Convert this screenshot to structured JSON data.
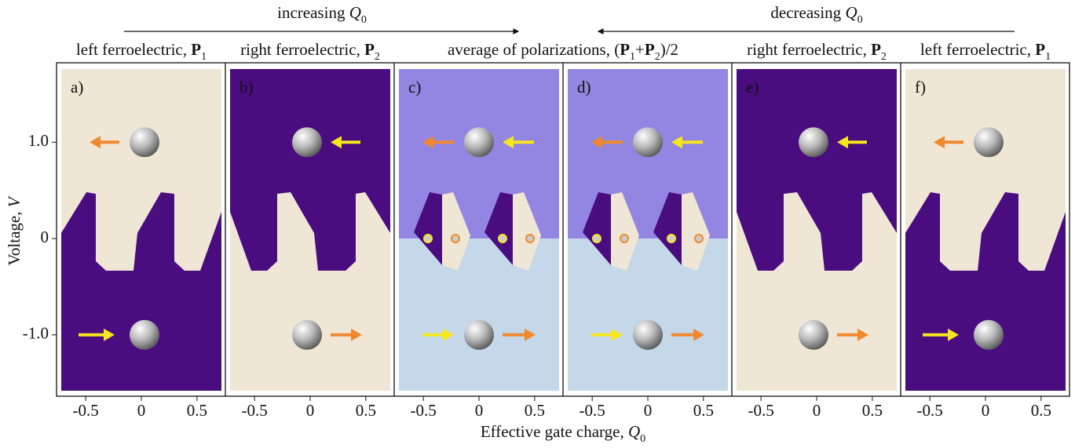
{
  "header": {
    "increasing": [
      {
        "t": "increasing  "
      },
      {
        "t": "Q",
        "i": true
      },
      {
        "t": "0",
        "sub": true
      }
    ],
    "decreasing": [
      {
        "t": "decreasing  "
      },
      {
        "t": "Q",
        "i": true
      },
      {
        "t": "0",
        "sub": true
      }
    ]
  },
  "titles": [
    [
      {
        "t": "left ferroelectric, "
      },
      {
        "t": "P",
        "b": true
      },
      {
        "t": "1",
        "sub": true
      }
    ],
    [
      {
        "t": "right ferroelectric, "
      },
      {
        "t": "P",
        "b": true
      },
      {
        "t": "2",
        "sub": true
      }
    ],
    [
      {
        "t": "average of polarizations, ("
      },
      {
        "t": "P",
        "b": true
      },
      {
        "t": "1",
        "sub": true
      },
      {
        "t": "+"
      },
      {
        "t": "P",
        "b": true
      },
      {
        "t": "2",
        "sub": true
      },
      {
        "t": ")/2"
      }
    ],
    [
      {
        "t": "right ferroelectric, "
      },
      {
        "t": "P",
        "b": true
      },
      {
        "t": "2",
        "sub": true
      }
    ],
    [
      {
        "t": "left ferroelectric, "
      },
      {
        "t": "P",
        "b": true
      },
      {
        "t": "1",
        "sub": true
      }
    ]
  ],
  "panels": [
    {
      "label": "a)",
      "kind": "left"
    },
    {
      "label": "b)",
      "kind": "right"
    },
    {
      "label": "c)",
      "kind": "average"
    },
    {
      "label": "d)",
      "kind": "average"
    },
    {
      "label": "e)",
      "kind": "right"
    },
    {
      "label": "f)",
      "kind": "left"
    }
  ],
  "y_axis": {
    "label": [
      {
        "t": "Voltage, "
      },
      {
        "t": "V",
        "i": true
      }
    ],
    "lim": [
      -1.58,
      1.76
    ],
    "ticks": [
      {
        "value": 1.0,
        "label": "1.0"
      },
      0,
      {
        "value": -1.0,
        "label": "-1.0"
      }
    ]
  },
  "x_axis": {
    "label": [
      {
        "t": "Effective gate charge, "
      },
      {
        "t": "Q",
        "i": true
      },
      {
        "t": "0",
        "sub": true
      }
    ],
    "lim": [
      -0.72,
      0.72
    ],
    "ticks": [
      -0.5,
      0,
      0.5
    ]
  }
}
